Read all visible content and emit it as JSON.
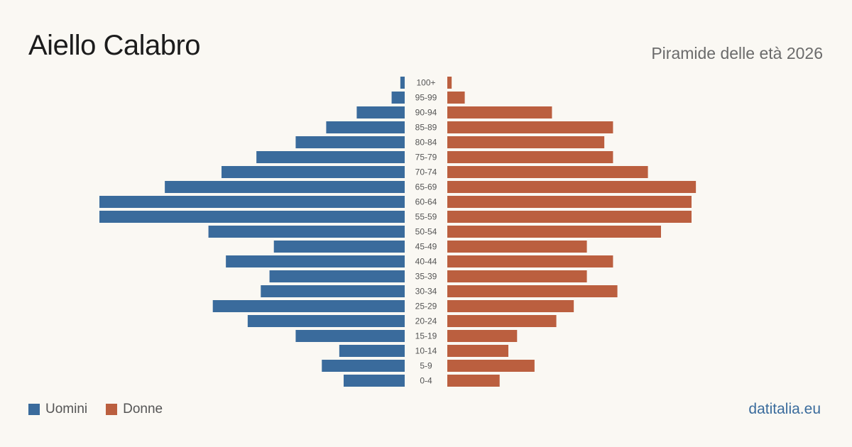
{
  "header": {
    "title": "Aiello Calabro",
    "subtitle": "Piramide delle età 2026"
  },
  "legend": {
    "men_label": "Uomini",
    "women_label": "Donne"
  },
  "brand": "datitalia.eu",
  "colors": {
    "men": "#3a6b9c",
    "women": "#bb5f3f",
    "background": "#faf8f3"
  },
  "chart_data": {
    "type": "bar",
    "orientation": "horizontal-pyramid",
    "title": "Piramide delle età 2026",
    "categories": [
      "100+",
      "95-99",
      "90-94",
      "85-89",
      "80-84",
      "75-79",
      "70-74",
      "65-69",
      "60-64",
      "55-59",
      "50-54",
      "45-49",
      "40-44",
      "35-39",
      "30-34",
      "25-29",
      "20-24",
      "15-19",
      "10-14",
      "5-9",
      "0-4"
    ],
    "series": [
      {
        "name": "Uomini",
        "values": [
          1,
          3,
          11,
          18,
          25,
          34,
          42,
          55,
          70,
          70,
          45,
          30,
          41,
          31,
          33,
          44,
          36,
          25,
          15,
          19,
          14
        ]
      },
      {
        "name": "Donne",
        "values": [
          1,
          4,
          24,
          38,
          36,
          38,
          46,
          57,
          56,
          56,
          49,
          32,
          38,
          32,
          39,
          29,
          25,
          16,
          14,
          20,
          12
        ]
      }
    ],
    "xlim": [
      0,
      70
    ],
    "grid": false,
    "legend_position": "bottom-left"
  }
}
